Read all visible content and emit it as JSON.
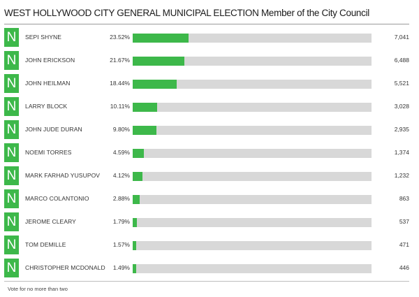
{
  "header": {
    "title": "WEST HOLLYWOOD CITY GENERAL MUNICIPAL ELECTION Member of the City Council"
  },
  "badge_letter": "N",
  "colors": {
    "accent": "#3db84a",
    "track": "#d8d8d8"
  },
  "chart_data": {
    "type": "bar",
    "orientation": "horizontal",
    "title": "WEST HOLLYWOOD CITY GENERAL MUNICIPAL ELECTION Member of the City Council",
    "xlim": [
      0,
      100
    ],
    "grid": false,
    "categories": [
      "SEPI SHYNE",
      "JOHN ERICKSON",
      "JOHN HEILMAN",
      "LARRY BLOCK",
      "JOHN JUDE DURAN",
      "NOEMI TORRES",
      "MARK FARHAD YUSUPOV",
      "MARCO COLANTONIO",
      "JEROME CLEARY",
      "TOM DEMILLE",
      "CHRISTOPHER MCDONALD"
    ],
    "series": [
      {
        "values": [
          23.52,
          21.67,
          18.44,
          10.11,
          9.8,
          4.59,
          4.12,
          2.88,
          1.79,
          1.57,
          1.49
        ]
      }
    ],
    "rows": [
      {
        "name": "SEPI SHYNE",
        "percent": 23.52,
        "percent_label": "23.52%",
        "votes": "7,041"
      },
      {
        "name": "JOHN ERICKSON",
        "percent": 21.67,
        "percent_label": "21.67%",
        "votes": "6,488"
      },
      {
        "name": "JOHN HEILMAN",
        "percent": 18.44,
        "percent_label": "18.44%",
        "votes": "5,521"
      },
      {
        "name": "LARRY BLOCK",
        "percent": 10.11,
        "percent_label": "10.11%",
        "votes": "3,028"
      },
      {
        "name": "JOHN JUDE DURAN",
        "percent": 9.8,
        "percent_label": "9.80%",
        "votes": "2,935"
      },
      {
        "name": "NOEMI TORRES",
        "percent": 4.59,
        "percent_label": "4.59%",
        "votes": "1,374"
      },
      {
        "name": "MARK FARHAD YUSUPOV",
        "percent": 4.12,
        "percent_label": "4.12%",
        "votes": "1,232"
      },
      {
        "name": "MARCO COLANTONIO",
        "percent": 2.88,
        "percent_label": "2.88%",
        "votes": "863"
      },
      {
        "name": "JEROME CLEARY",
        "percent": 1.79,
        "percent_label": "1.79%",
        "votes": "537"
      },
      {
        "name": "TOM DEMILLE",
        "percent": 1.57,
        "percent_label": "1.57%",
        "votes": "471"
      },
      {
        "name": "CHRISTOPHER MCDONALD",
        "percent": 1.49,
        "percent_label": "1.49%",
        "votes": "446"
      }
    ]
  },
  "footer": {
    "note": "Vote for no more than two"
  }
}
